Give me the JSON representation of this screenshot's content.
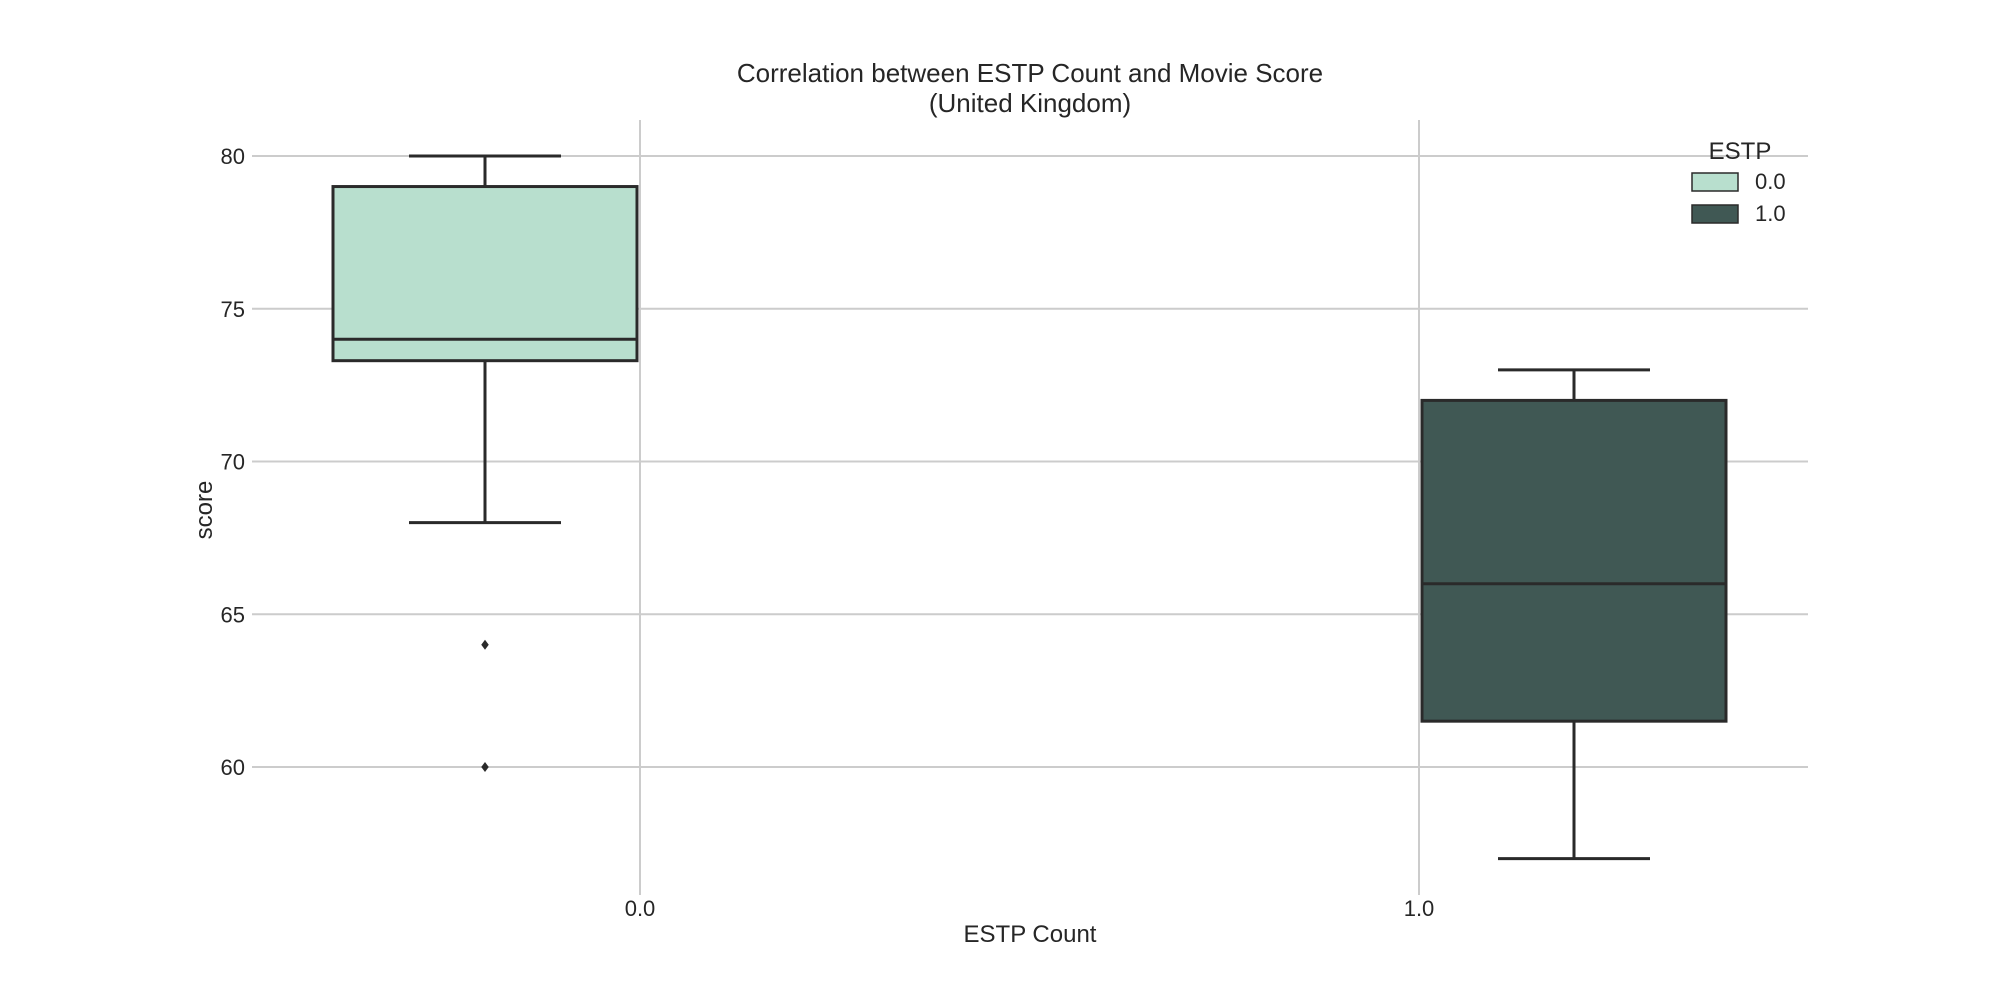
{
  "chart_data": {
    "type": "box",
    "title_line1": "Correlation between ESTP Count and Movie Score",
    "title_line2": "(United Kingdom)",
    "xlabel": "ESTP Count",
    "ylabel": "score",
    "categories": [
      "0.0",
      "1.0"
    ],
    "yticks": [
      60,
      65,
      70,
      75,
      80
    ],
    "ylim": [
      54.7,
      81.3
    ],
    "grid": true,
    "legend": {
      "title": "ESTP",
      "placement": "top-right",
      "entries": [
        "0.0",
        "1.0"
      ]
    },
    "series": [
      {
        "name": "0.0",
        "category": "0.0",
        "color": "#b8dfce",
        "whisker_low": 68,
        "q1": 73.3,
        "median": 74,
        "q3": 79,
        "whisker_high": 80,
        "outliers": [
          64,
          60
        ]
      },
      {
        "name": "1.0",
        "category": "1.0",
        "color": "#405854",
        "whisker_low": 57,
        "q1": 61.5,
        "median": 66,
        "q3": 72,
        "whisker_high": 73,
        "outliers": []
      }
    ]
  }
}
